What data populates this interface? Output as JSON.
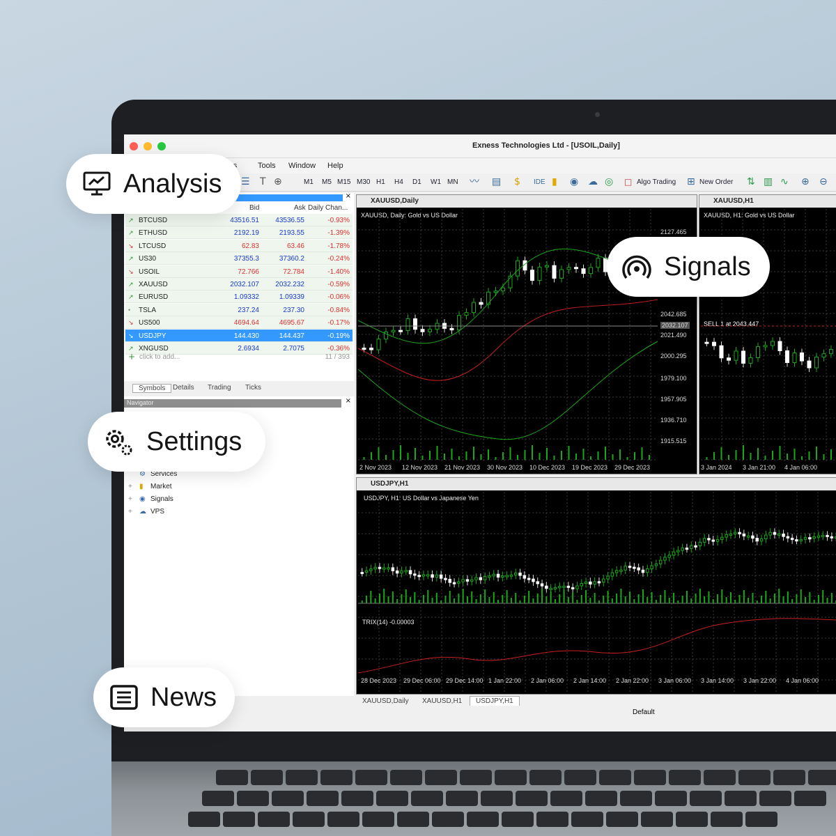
{
  "window": {
    "title": "Exness Technologies Ltd - [USOIL,Daily]",
    "menu": [
      "rts",
      "Tools",
      "Window",
      "Help"
    ]
  },
  "toolbar": {
    "timeframes": [
      "M1",
      "M5",
      "M15",
      "M30",
      "H1",
      "H4",
      "D1",
      "W1",
      "MN"
    ],
    "ide": "IDE",
    "algo_trading": "Algo Trading",
    "new_order": "New Order"
  },
  "market_watch": {
    "columns": {
      "bid": "Bid",
      "ask": "Ask",
      "change": "Daily Chan..."
    },
    "rows": [
      {
        "symbol": "BTCUSD",
        "bid": "43516.51",
        "ask": "43536.55",
        "change": "-0.93%",
        "dir": "up"
      },
      {
        "symbol": "ETHUSD",
        "bid": "2192.19",
        "ask": "2193.55",
        "change": "-1.39%",
        "dir": "up"
      },
      {
        "symbol": "LTCUSD",
        "bid": "62.83",
        "ask": "63.46",
        "change": "-1.78%",
        "dir": "down"
      },
      {
        "symbol": "US30",
        "bid": "37355.3",
        "ask": "37360.2",
        "change": "-0.24%",
        "dir": "up"
      },
      {
        "symbol": "USOIL",
        "bid": "72.766",
        "ask": "72.784",
        "change": "-1.40%",
        "dir": "down"
      },
      {
        "symbol": "XAUUSD",
        "bid": "2032.107",
        "ask": "2032.232",
        "change": "-0.59%",
        "dir": "up"
      },
      {
        "symbol": "EURUSD",
        "bid": "1.09332",
        "ask": "1.09339",
        "change": "-0.06%",
        "dir": "up"
      },
      {
        "symbol": "TSLA",
        "bid": "237.24",
        "ask": "237.30",
        "change": "-0.84%",
        "dir": "flat"
      },
      {
        "symbol": "US500",
        "bid": "4694.64",
        "ask": "4695.67",
        "change": "-0.17%",
        "dir": "down"
      },
      {
        "symbol": "USDJPY",
        "bid": "144.430",
        "ask": "144.437",
        "change": "-0.19%",
        "dir": "down"
      },
      {
        "symbol": "XNGUSD",
        "bid": "2.6934",
        "ask": "2.7075",
        "change": "-0.36%",
        "dir": "up"
      }
    ],
    "add_placeholder": "click to add...",
    "count": "11 / 393",
    "tabs": [
      "Symbols",
      "Details",
      "Trading",
      "Ticks"
    ]
  },
  "navigator": {
    "title": "Navigator",
    "items": [
      "Services",
      "Market",
      "Signals",
      "VPS"
    ]
  },
  "charts": {
    "xauusd_daily": {
      "title": "XAUUSD,Daily",
      "subtitle": "XAUUSD, Daily:  Gold vs US Dollar",
      "prices": [
        "2127.465",
        "2042.685",
        "2032.107",
        "2021.490",
        "2000.295",
        "1979.100",
        "1957.905",
        "1936.710",
        "1915.515"
      ],
      "dates": [
        "2 Nov 2023",
        "12 Nov 2023",
        "21 Nov 2023",
        "30 Nov 2023",
        "10 Dec 2023",
        "19 Dec 2023",
        "29 Dec 2023"
      ]
    },
    "xauusd_h1": {
      "title": "XAUUSD,H1",
      "subtitle": "XAUUSD, H1:  Gold vs US Dollar",
      "trade_label": "SELL 1 at 2043.447",
      "dates": [
        "3 Jan 2024",
        "3 Jan 21:00",
        "4 Jan 06:00"
      ]
    },
    "usdjpy_h1": {
      "title": "USDJPY,H1",
      "subtitle": "USDJPY, H1:  US Dollar vs Japanese Yen",
      "indicator": "TRIX(14) -0.00003",
      "dates": [
        "28 Dec 2023",
        "29 Dec 06:00",
        "29 Dec 14:00",
        "1 Jan 22:00",
        "2 Jan 06:00",
        "2 Jan 14:00",
        "2 Jan 22:00",
        "3 Jan 06:00",
        "3 Jan 14:00",
        "3 Jan 22:00",
        "4 Jan 06:00"
      ]
    }
  },
  "chart_tabs": [
    "XAUUSD,Daily",
    "XAUUSD,H1",
    "USDJPY,H1"
  ],
  "status": {
    "profile": "Default"
  },
  "pills": {
    "analysis": "Analysis",
    "signals": "Signals",
    "settings": "Settings",
    "news": "News"
  },
  "colors": {
    "bull": "#1aa81a",
    "bear": "#ffffff",
    "select": "#3399ff",
    "negative": "#e03030",
    "value_blue": "#1a3ad0"
  },
  "icons": {
    "analysis": "monitor-chart-icon",
    "signals": "broadcast-icon",
    "settings": "gears-icon",
    "news": "newspaper-icon"
  }
}
